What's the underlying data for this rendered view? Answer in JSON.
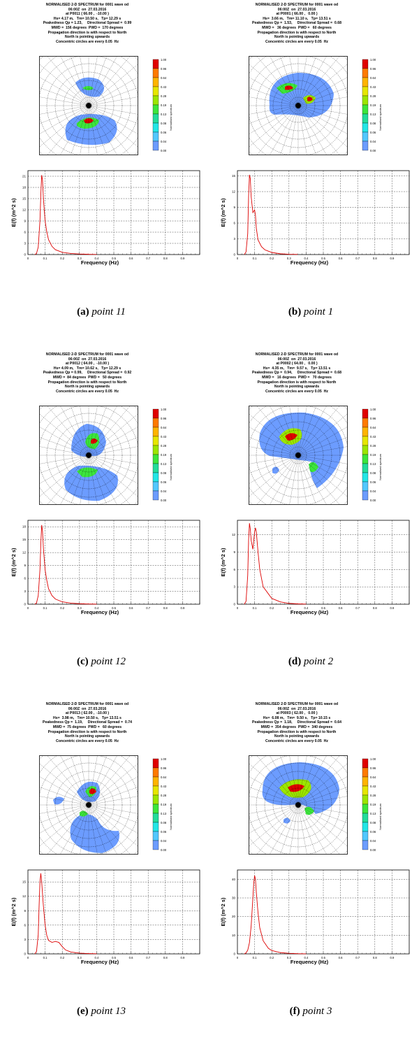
{
  "panels": [
    {
      "header": [
        "NORMALISED 2-D SPECTRUM for 0001 wave od",
        "06:00Z  on  27.03.2016",
        "at P0011 ( 66.00 ,  -10.00 )",
        "Hs= 4.17 m,   Tm= 10.50 s,   Tp= 12.29 s",
        "Peakedness Qp = 1.23,     Directional Spread =  0.99",
        "MWD =  156 degrees  PWD =  170 degrees",
        "Propagation direction is with respect to North",
        "North is pointing upwards",
        "Concentric circles are every 0.05  Hz"
      ],
      "caption_letter": "(a)",
      "caption_text": "point 11",
      "chart_data": {
        "type": "line",
        "title": "",
        "xlabel": "Frequency  (Hz)",
        "ylabel": "E(f)  (m^2 s)",
        "x": [
          0.04,
          0.05,
          0.06,
          0.07,
          0.075,
          0.08,
          0.085,
          0.09,
          0.1,
          0.11,
          0.12,
          0.14,
          0.16,
          0.2,
          0.25,
          0.3,
          0.35,
          0.4
        ],
        "y": [
          0,
          0.3,
          2,
          9,
          16,
          21.3,
          20,
          15,
          9,
          6,
          4,
          2.2,
          1.3,
          0.6,
          0.3,
          0.15,
          0.07,
          0.03
        ],
        "xlim": [
          0,
          1
        ],
        "ylim": [
          0,
          22.5
        ],
        "yticks": [
          0,
          3,
          6,
          9,
          12,
          15,
          18,
          21
        ]
      }
    },
    {
      "header": [
        "NORMALISED 2-D SPECTRUM for 0001 wave od",
        "06:00Z  on  27.03.2016",
        "at P0001 ( 66.00 ,   0.00 )",
        "Hs=  3.66 m,   Tm= 11.10 s,   Tp= 13.51 s",
        "Peakedness Qp =  1.53,     Directional Spread =  0.68",
        "MWD =   36 degrees  PWD =   60 degrees",
        "Propagation direction is with respect to North",
        "North is pointing upwards",
        "Concentric circles are every 0.05  Hz"
      ],
      "caption_letter": "(b)",
      "caption_text": "point 1",
      "chart_data": {
        "type": "line",
        "title": "",
        "xlabel": "Frequency  (Hz)",
        "ylabel": "E(f)  (m^2 s)",
        "x": [
          0.04,
          0.05,
          0.06,
          0.065,
          0.07,
          0.075,
          0.08,
          0.09,
          0.1,
          0.105,
          0.11,
          0.12,
          0.14,
          0.16,
          0.2,
          0.25,
          0.3,
          0.35
        ],
        "y": [
          0,
          0.5,
          4,
          11,
          15.2,
          14.5,
          11,
          8,
          8.5,
          7.5,
          5,
          2.8,
          1.5,
          0.9,
          0.4,
          0.15,
          0.06,
          0.02
        ],
        "xlim": [
          0,
          1
        ],
        "ylim": [
          0,
          16
        ],
        "yticks": [
          0,
          3,
          6,
          9,
          12,
          15
        ]
      }
    },
    {
      "header": [
        "NORMALISED 2-D SPECTRUM for 0001 wave od",
        "06:00Z  on  27.03.2016",
        "at P0012 ( 64.00 ,  -10.00 )",
        "Hs= 4.09 m,   Tm= 10.62 s,   Tp= 12.29 s",
        "Peakedness Qp = 0.99,     Directional Spread =  0.92",
        "MWD =  84 degrees  PWD =   50 degrees",
        "Propagation direction is with respect to North",
        "North is pointing upwards",
        "Concentric circles are every 0.05  Hz"
      ],
      "caption_letter": "(c)",
      "caption_text": "point 12",
      "chart_data": {
        "type": "line",
        "title": "",
        "xlabel": "Frequency  (Hz)",
        "ylabel": "E(f)  (m^2 s)",
        "x": [
          0.04,
          0.05,
          0.06,
          0.07,
          0.075,
          0.08,
          0.085,
          0.09,
          0.1,
          0.11,
          0.12,
          0.14,
          0.16,
          0.2,
          0.25,
          0.3,
          0.35,
          0.4
        ],
        "y": [
          0,
          0.3,
          2,
          8,
          14,
          18.4,
          17,
          13,
          8,
          5.5,
          3.6,
          2,
          1.2,
          0.55,
          0.25,
          0.12,
          0.05,
          0.02
        ],
        "xlim": [
          0,
          1
        ],
        "ylim": [
          0,
          19.5
        ],
        "yticks": [
          0,
          3,
          6,
          9,
          12,
          15,
          18
        ]
      }
    },
    {
      "header": [
        "NORMALISED 2-D SPECTRUM for 0001 wave od",
        "06:00Z  on  27.03.2016",
        "at P0002 ( 64.00 ,   0.00 )",
        "Hs=  4.35 m,   Tm=  9.57 s,   Tp= 13.51 s",
        "Peakedness Qp =  0.94,     Directional Spread =  0.68",
        "MWD =   16 degrees  PWD =   70 degrees",
        "Propagation direction is with respect to North",
        "North is pointing upwards",
        "Concentric circles are every 0.05  Hz"
      ],
      "caption_letter": "(d)",
      "caption_text": "point 2",
      "chart_data": {
        "type": "line",
        "title": "",
        "xlabel": "Frequency  (Hz)",
        "ylabel": "E(f)  (m^2 s)",
        "x": [
          0.04,
          0.05,
          0.06,
          0.065,
          0.07,
          0.075,
          0.08,
          0.09,
          0.1,
          0.105,
          0.11,
          0.12,
          0.13,
          0.15,
          0.2,
          0.25,
          0.3,
          0.35,
          0.4
        ],
        "y": [
          0,
          0.5,
          5,
          11,
          14,
          13,
          11,
          9.5,
          12.5,
          13.2,
          12.5,
          9,
          6,
          3,
          1,
          0.4,
          0.15,
          0.06,
          0.02
        ],
        "xlim": [
          0,
          1
        ],
        "ylim": [
          0,
          14.5
        ],
        "yticks": [
          0,
          3,
          6,
          9,
          12
        ]
      }
    },
    {
      "header": [
        "NORMALISED 2-D SPECTRUM for 0001 wave od",
        "06:00Z  on  27.03.2016",
        "at P0013 ( 62.00 ,  -10.00 )",
        "Hs=  3.98 m,   Tm= 10.50 s,   Tp= 13.51 s",
        "Peakedness Qp =  1.19,     Directional Spread =  0.74",
        "MWD =  75 degrees  PWD =   60 degrees",
        "Propagation direction is with respect to North",
        "North is pointing upwards",
        "Concentric circles are every 0.05  Hz"
      ],
      "caption_letter": "(e)",
      "caption_text": "point 13",
      "chart_data": {
        "type": "line",
        "title": "",
        "xlabel": "Frequency  (Hz)",
        "ylabel": "E(f)  (m^2 s)",
        "x": [
          0.04,
          0.05,
          0.06,
          0.065,
          0.07,
          0.075,
          0.08,
          0.09,
          0.1,
          0.11,
          0.12,
          0.14,
          0.16,
          0.18,
          0.2,
          0.22,
          0.25,
          0.3,
          0.35,
          0.4
        ],
        "y": [
          0,
          0.5,
          4,
          10,
          15,
          16.8,
          15,
          10,
          6,
          3.8,
          2.8,
          2.4,
          2.6,
          2.4,
          1.5,
          0.8,
          0.4,
          0.15,
          0.06,
          0.02
        ],
        "xlim": [
          0,
          1
        ],
        "ylim": [
          0,
          17.5
        ],
        "yticks": [
          0,
          3,
          6,
          9,
          12,
          15
        ]
      }
    },
    {
      "header": [
        "NORMALISED 2-D SPECTRUM for 0001 wave od",
        "06:00Z  on  27.03.2016",
        "at P0003 ( 62.00 ,   0.00 )",
        "Hs=  6.08 m,   Tm=  9.50 s,   Tp= 10.15 s",
        "Peakedness Qp =  1.18,     Directional Spread =  0.64",
        "MWD =  354 degrees  PWD =  340 degrees",
        "Propagation direction is with respect to North",
        "North is pointing upwards",
        "Concentric circles are every 0.05  Hz"
      ],
      "caption_letter": "(f)",
      "caption_text": "point 3",
      "chart_data": {
        "type": "line",
        "title": "",
        "xlabel": "Frequency  (Hz)",
        "ylabel": "E(f)  (m^2 s)",
        "x": [
          0.04,
          0.05,
          0.06,
          0.07,
          0.08,
          0.09,
          0.095,
          0.1,
          0.105,
          0.11,
          0.12,
          0.13,
          0.15,
          0.18,
          0.2,
          0.25,
          0.3,
          0.35,
          0.4
        ],
        "y": [
          0,
          0.5,
          2,
          6,
          15,
          30,
          38,
          42,
          40,
          33,
          22,
          14,
          7,
          3,
          1.8,
          0.7,
          0.3,
          0.1,
          0.04
        ],
        "xlim": [
          0,
          1
        ],
        "ylim": [
          0,
          45
        ],
        "yticks": [
          0,
          10,
          20,
          30,
          40
        ]
      }
    }
  ],
  "colorbar": {
    "title": "Normalised spectrum",
    "levels": [
      "1.00",
      "0.96",
      "0.64",
      "0.43",
      "0.28",
      "0.19",
      "0.13",
      "0.08",
      "0.06",
      "0.04",
      "0.00"
    ],
    "colors": [
      "#e00000",
      "#ff7a00",
      "#ffb400",
      "#e6e600",
      "#9ce600",
      "#3ce63c",
      "#22dc9a",
      "#22e6e6",
      "#52c8ff",
      "#6c9cff"
    ]
  },
  "xticks": [
    "0",
    "0.1",
    "0.2",
    "0.3",
    "0.4",
    "0.5",
    "0.6",
    "0.7",
    "0.8",
    "0.9"
  ],
  "line_color": "#dd0000"
}
